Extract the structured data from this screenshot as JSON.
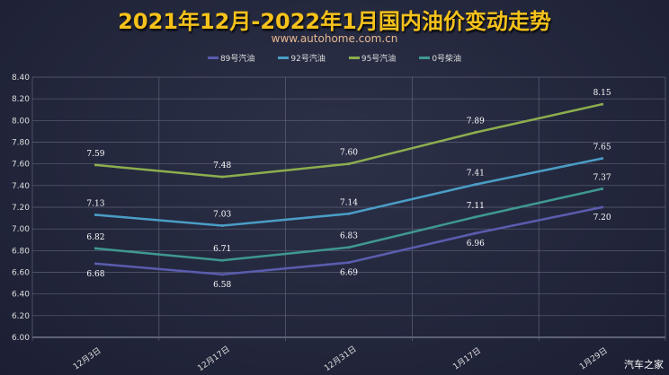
{
  "chart_data": {
    "type": "line",
    "title": "2021年12月-2022年1月国内油价变动走势",
    "subtitle": "www.autohome.com.cn",
    "categories": [
      "12月3日",
      "12月17日",
      "12月31日",
      "1月17日",
      "1月29日"
    ],
    "ylim": [
      6.0,
      8.4
    ],
    "yticks": [
      "6.00",
      "6.20",
      "6.40",
      "6.60",
      "6.80",
      "7.00",
      "7.20",
      "7.40",
      "7.60",
      "7.80",
      "8.00",
      "8.20",
      "8.40"
    ],
    "grid": true,
    "legend": "top",
    "series": [
      {
        "name": "89号汽油",
        "color": "#5a5cae",
        "values": [
          6.68,
          6.58,
          6.69,
          6.96,
          7.2
        ],
        "labelPos": "below"
      },
      {
        "name": "92号汽油",
        "color": "#4a9dc6",
        "values": [
          7.13,
          7.03,
          7.14,
          7.41,
          7.65
        ],
        "labelPos": "above"
      },
      {
        "name": "95号汽油",
        "color": "#8cae4e",
        "values": [
          7.59,
          7.48,
          7.6,
          7.89,
          8.15
        ],
        "labelPos": "above"
      },
      {
        "name": "0号柴油",
        "color": "#3f9893",
        "values": [
          6.82,
          6.71,
          6.83,
          7.11,
          7.37
        ],
        "labelPos": "above"
      }
    ]
  },
  "watermark": "汽车之家"
}
